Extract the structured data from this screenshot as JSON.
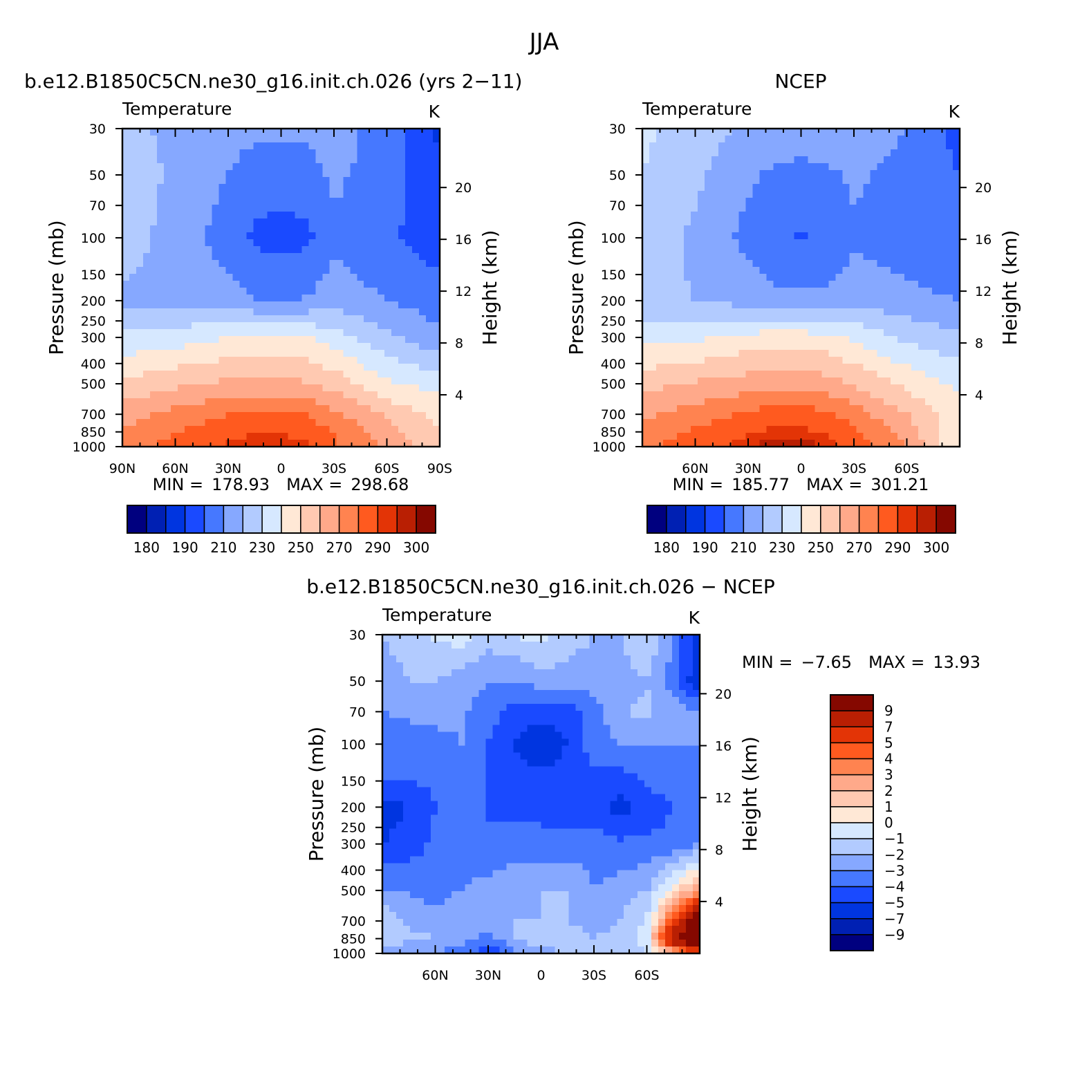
{
  "figure": {
    "title": "JJA"
  },
  "colors": {
    "temperature_levels": [
      "#00007f",
      "#0020b3",
      "#0035e0",
      "#1a4aff",
      "#4678ff",
      "#86a8ff",
      "#b2cbff",
      "#d6e8ff",
      "#ffe8d6",
      "#ffc9b1",
      "#ffa98a",
      "#ff8350",
      "#ff5a1f",
      "#e33406",
      "#b91f03",
      "#850800"
    ],
    "difference_levels": [
      "#00007f",
      "#0020b3",
      "#0035e0",
      "#1a4aff",
      "#4678ff",
      "#86a8ff",
      "#b2cbff",
      "#d6e8ff",
      "#ffe8d6",
      "#ffc9b1",
      "#ffa98a",
      "#ff8350",
      "#ff5a1f",
      "#e33406",
      "#b91f03",
      "#850800"
    ]
  },
  "chart_data": [
    {
      "type": "heatmap",
      "panel_title": "b.e12.B1850C5CN.ne30_g16.init.ch.026 (yrs 2−11)",
      "left_label": "Temperature",
      "units": "K",
      "ylabel": "Pressure (mb)",
      "y2label": "Height (km)",
      "x_ticks": [
        "90N",
        "60N",
        "30N",
        "0",
        "30S",
        "60S",
        "90S"
      ],
      "x_tick_values": [
        90,
        60,
        30,
        0,
        -30,
        -60,
        -90
      ],
      "xlim": [
        90,
        -90
      ],
      "y_ticks": [
        "30",
        "50",
        "70",
        "100",
        "150",
        "200",
        "250",
        "300",
        "400",
        "500",
        "700",
        "850",
        "1000"
      ],
      "y_tick_values": [
        30,
        50,
        70,
        100,
        150,
        200,
        250,
        300,
        400,
        500,
        700,
        850,
        1000
      ],
      "ylim": [
        1000,
        30
      ],
      "y_log": true,
      "y2_ticks": [
        "4",
        "8",
        "12",
        "16",
        "20"
      ],
      "stats": {
        "min_label": "MIN =",
        "min": "178.93",
        "max_label": "MAX =",
        "max": "298.68"
      },
      "colorbar_labels": [
        "180",
        "190",
        "210",
        "230",
        "250",
        "270",
        "290",
        "300"
      ],
      "lat": [
        90,
        60,
        30,
        15,
        0,
        -15,
        -30,
        -60,
        -90
      ],
      "pressure": [
        30,
        50,
        100,
        200,
        300,
        500,
        700,
        850,
        1000
      ],
      "values": [
        [
          222,
          218,
          213,
          212,
          212,
          212,
          215,
          205,
          188
        ],
        [
          226,
          218,
          210,
          206,
          205,
          206,
          212,
          205,
          192
        ],
        [
          225,
          216,
          205,
          198,
          196,
          198,
          208,
          202,
          194
        ],
        [
          218,
          217,
          214,
          210,
          209,
          211,
          215,
          210,
          205
        ],
        [
          232,
          235,
          240,
          242,
          242,
          240,
          235,
          222,
          212
        ],
        [
          252,
          258,
          262,
          263,
          263,
          261,
          256,
          242,
          236
        ],
        [
          265,
          273,
          280,
          282,
          282,
          280,
          272,
          258,
          246
        ],
        [
          272,
          280,
          286,
          289,
          289,
          286,
          280,
          265,
          250
        ],
        [
          276,
          284,
          292,
          296,
          296,
          292,
          282,
          268,
          252
        ]
      ]
    },
    {
      "type": "heatmap",
      "panel_title": "NCEP",
      "left_label": "Temperature",
      "units": "K",
      "ylabel": "Pressure (mb)",
      "y2label": "Height (km)",
      "x_ticks": [
        "60N",
        "30N",
        "0",
        "30S",
        "60S"
      ],
      "x_tick_values": [
        60,
        30,
        0,
        -30,
        -60
      ],
      "xlim": [
        90,
        -90
      ],
      "y_ticks": [
        "30",
        "50",
        "70",
        "100",
        "150",
        "200",
        "250",
        "300",
        "400",
        "500",
        "700",
        "850",
        "1000"
      ],
      "y_tick_values": [
        30,
        50,
        70,
        100,
        150,
        200,
        250,
        300,
        400,
        500,
        700,
        850,
        1000
      ],
      "ylim": [
        1000,
        30
      ],
      "y_log": true,
      "y2_ticks": [
        "4",
        "8",
        "12",
        "16",
        "20"
      ],
      "stats": {
        "min_label": "MIN =",
        "min": "185.77",
        "max_label": "MAX =",
        "max": "301.21"
      },
      "colorbar_labels": [
        "180",
        "190",
        "210",
        "230",
        "250",
        "270",
        "290",
        "300"
      ],
      "lat": [
        90,
        60,
        30,
        15,
        0,
        -15,
        -30,
        -60,
        -90
      ],
      "pressure": [
        30,
        50,
        100,
        200,
        300,
        500,
        700,
        850,
        1000
      ],
      "values": [
        [
          232,
          225,
          218,
          216,
          215,
          216,
          218,
          210,
          196
        ],
        [
          230,
          222,
          212,
          208,
          207,
          208,
          212,
          206,
          200
        ],
        [
          226,
          218,
          207,
          201,
          199,
          201,
          208,
          204,
          200
        ],
        [
          223,
          220,
          216,
          213,
          212,
          213,
          217,
          213,
          210
        ],
        [
          236,
          238,
          243,
          245,
          245,
          243,
          238,
          228,
          222
        ],
        [
          256,
          261,
          265,
          266,
          266,
          264,
          259,
          247,
          238
        ],
        [
          268,
          275,
          282,
          285,
          285,
          282,
          275,
          260,
          244
        ],
        [
          274,
          282,
          289,
          292,
          292,
          289,
          281,
          266,
          240
        ],
        [
          278,
          286,
          294,
          299,
          299,
          295,
          286,
          270,
          240
        ]
      ]
    },
    {
      "type": "heatmap",
      "panel_title": "b.e12.B1850C5CN.ne30_g16.init.ch.026 − NCEP",
      "left_label": "Temperature",
      "units": "K",
      "ylabel": "Pressure (mb)",
      "y2label": "Height (km)",
      "x_ticks": [
        "60N",
        "30N",
        "0",
        "30S",
        "60S"
      ],
      "x_tick_values": [
        60,
        30,
        0,
        -30,
        -60
      ],
      "xlim": [
        90,
        -90
      ],
      "y_ticks": [
        "30",
        "50",
        "70",
        "100",
        "150",
        "200",
        "250",
        "300",
        "400",
        "500",
        "700",
        "850",
        "1000"
      ],
      "y_tick_values": [
        30,
        50,
        70,
        100,
        150,
        200,
        250,
        300,
        400,
        500,
        700,
        850,
        1000
      ],
      "ylim": [
        1000,
        30
      ],
      "y_log": true,
      "y2_ticks": [
        "4",
        "8",
        "12",
        "16",
        "20"
      ],
      "stats": {
        "min_label": "MIN =",
        "min": "−7.65",
        "max_label": "MAX =",
        "max": "13.93"
      },
      "colorbar_labels": [
        "9",
        "7",
        "5",
        "4",
        "3",
        "2",
        "1",
        "0",
        "−1",
        "−2",
        "−3",
        "−4",
        "−5",
        "−7",
        "−9"
      ],
      "lat": [
        90,
        75,
        60,
        45,
        30,
        15,
        0,
        -15,
        -30,
        -45,
        -60,
        -75,
        -90
      ],
      "pressure": [
        30,
        50,
        70,
        100,
        150,
        200,
        300,
        500,
        700,
        850,
        1000
      ],
      "values": [
        [
          -2.0,
          -1.5,
          -0.8,
          -0.5,
          -1.5,
          -1.0,
          -0.5,
          -1.5,
          -2.0,
          -2.0,
          -1.0,
          -3.0,
          -6.0
        ],
        [
          -2.5,
          -2.0,
          -2.0,
          -2.5,
          -3.0,
          -3.0,
          -2.5,
          -2.5,
          -2.5,
          -2.5,
          -2.0,
          -3.5,
          -6.0
        ],
        [
          -3.0,
          -2.8,
          -2.5,
          -2.8,
          -3.5,
          -4.5,
          -4.5,
          -4.5,
          -3.5,
          -2.0,
          -1.8,
          -2.5,
          -3.0
        ],
        [
          -3.5,
          -3.5,
          -3.5,
          -3.0,
          -4.0,
          -5.0,
          -6.0,
          -5.0,
          -3.5,
          -3.0,
          -3.0,
          -3.0,
          -3.0
        ],
        [
          -4.0,
          -4.0,
          -3.8,
          -4.0,
          -4.0,
          -4.5,
          -4.5,
          -4.3,
          -4.2,
          -4.5,
          -3.8,
          -3.5,
          -3.5
        ],
        [
          -5.5,
          -5.0,
          -4.0,
          -4.0,
          -4.0,
          -4.3,
          -4.2,
          -4.5,
          -4.5,
          -5.5,
          -4.5,
          -4.0,
          -4.0
        ],
        [
          -5.0,
          -4.5,
          -3.8,
          -3.5,
          -4.0,
          -3.5,
          -3.8,
          -3.5,
          -3.5,
          -3.8,
          -3.8,
          -3.8,
          -3.0
        ],
        [
          -3.0,
          -3.0,
          -3.5,
          -3.0,
          -2.5,
          -2.2,
          -2.0,
          -2.0,
          -3.0,
          -2.5,
          -2.0,
          0.5,
          3.0
        ],
        [
          -1.0,
          -2.5,
          -2.5,
          -2.0,
          -2.2,
          -2.0,
          -2.0,
          -2.0,
          -2.5,
          -2.0,
          -1.0,
          5.0,
          12.0
        ],
        [
          -1.0,
          -1.5,
          -2.0,
          -2.5,
          -3.5,
          -2.0,
          -1.2,
          -1.5,
          -2.0,
          -1.5,
          -0.5,
          9.0,
          13.0
        ],
        [
          -3.0,
          -3.5,
          -3.0,
          -3.5,
          -5.0,
          -3.0,
          -2.5,
          -2.0,
          -2.0,
          -1.5,
          -1.0,
          2.0,
          5.0
        ]
      ]
    }
  ]
}
